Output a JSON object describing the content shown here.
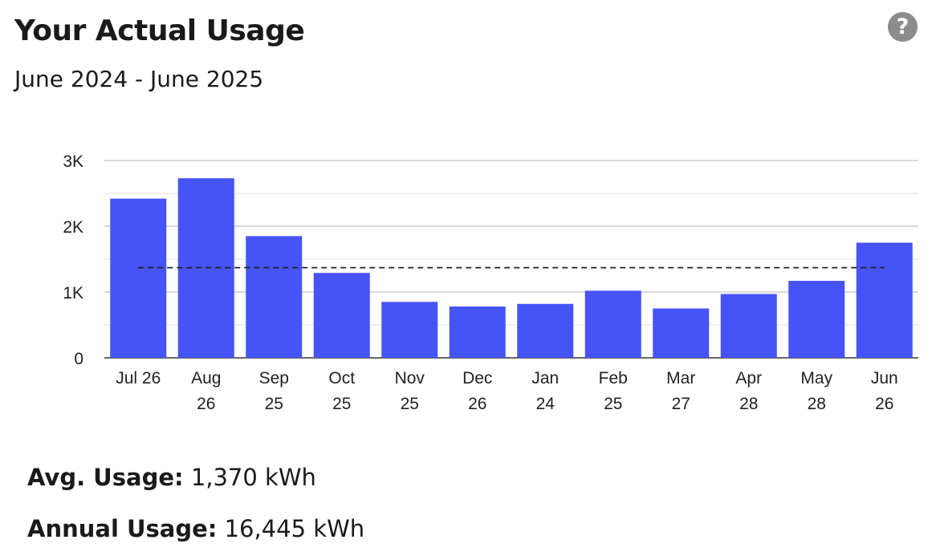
{
  "header": {
    "title": "Your Actual Usage",
    "subtitle": "June 2024 - June 2025",
    "help_icon": "?"
  },
  "stats": {
    "avg_label": "Avg. Usage:",
    "avg_value": "1,370 kWh",
    "annual_label": "Annual Usage:",
    "annual_value": "16,445 kWh"
  },
  "chart_data": {
    "type": "bar",
    "categories": [
      [
        "Jul 26"
      ],
      [
        "Aug",
        "26"
      ],
      [
        "Sep",
        "25"
      ],
      [
        "Oct",
        "25"
      ],
      [
        "Nov",
        "25"
      ],
      [
        "Dec",
        "26"
      ],
      [
        "Jan",
        "24"
      ],
      [
        "Feb",
        "25"
      ],
      [
        "Mar",
        "27"
      ],
      [
        "Apr",
        "28"
      ],
      [
        "May",
        "28"
      ],
      [
        "Jun",
        "26"
      ]
    ],
    "values": [
      2420,
      2730,
      1850,
      1290,
      850,
      780,
      820,
      1020,
      750,
      970,
      1170,
      1750
    ],
    "average": 1370,
    "ylim": [
      0,
      3000
    ],
    "yticks": [
      {
        "value": 0,
        "label": "0"
      },
      {
        "value": 1000,
        "label": "1K"
      },
      {
        "value": 2000,
        "label": "2K"
      },
      {
        "value": 3000,
        "label": "3K"
      }
    ],
    "minor_gridlines": [
      500,
      1500,
      2500
    ],
    "bar_color": "#4653f7",
    "grid": true
  }
}
